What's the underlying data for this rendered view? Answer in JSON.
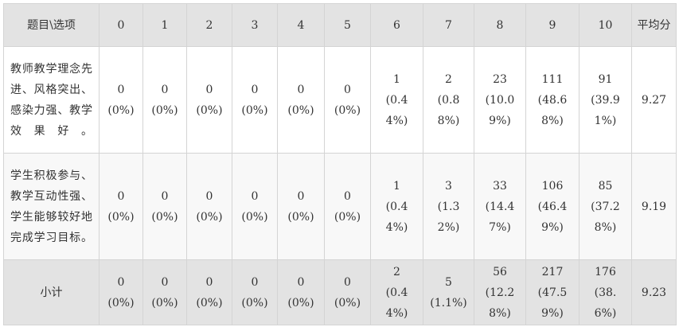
{
  "table": {
    "headers": [
      "题目\\选项",
      "0",
      "1",
      "2",
      "3",
      "4",
      "5",
      "6",
      "7",
      "8",
      "9",
      "10",
      "平均分"
    ],
    "rows": [
      {
        "question": "教师教学理念先进、风格突出、感染力强、教学效果好。",
        "cells": [
          [
            "0",
            "(0%)"
          ],
          [
            "0",
            "(0%)"
          ],
          [
            "0",
            "(0%)"
          ],
          [
            "0",
            "(0%)"
          ],
          [
            "0",
            "(0%)"
          ],
          [
            "0",
            "(0%)"
          ],
          [
            "1",
            "(0.44%)"
          ],
          [
            "2",
            "(0.88%)"
          ],
          [
            "23",
            "(10.09%)"
          ],
          [
            "111",
            "(48.68%)"
          ],
          [
            "91",
            "(39.91%)"
          ]
        ],
        "average": "9.27"
      },
      {
        "question": "学生积极参与、教学互动性强、学生能够较好地完成学习目标。",
        "cells": [
          [
            "0",
            "(0%)"
          ],
          [
            "0",
            "(0%)"
          ],
          [
            "0",
            "(0%)"
          ],
          [
            "0",
            "(0%)"
          ],
          [
            "0",
            "(0%)"
          ],
          [
            "0",
            "(0%)"
          ],
          [
            "1",
            "(0.44%)"
          ],
          [
            "3",
            "(1.32%)"
          ],
          [
            "33",
            "(14.47%)"
          ],
          [
            "106",
            "(46.49%)"
          ],
          [
            "85",
            "(37.28%)"
          ]
        ],
        "average": "9.19"
      },
      {
        "question": "小计",
        "cells": [
          [
            "0",
            "(0%)"
          ],
          [
            "0",
            "(0%)"
          ],
          [
            "0",
            "(0%)"
          ],
          [
            "0",
            "(0%)"
          ],
          [
            "0",
            "(0%)"
          ],
          [
            "0",
            "(0%)"
          ],
          [
            "2",
            "(0.44%)"
          ],
          [
            "5",
            "(1.1%)"
          ],
          [
            "56",
            "(12.28%)"
          ],
          [
            "217",
            "(47.59%)"
          ],
          [
            "176",
            "(38.6%)"
          ]
        ],
        "average": "9.23"
      }
    ]
  }
}
